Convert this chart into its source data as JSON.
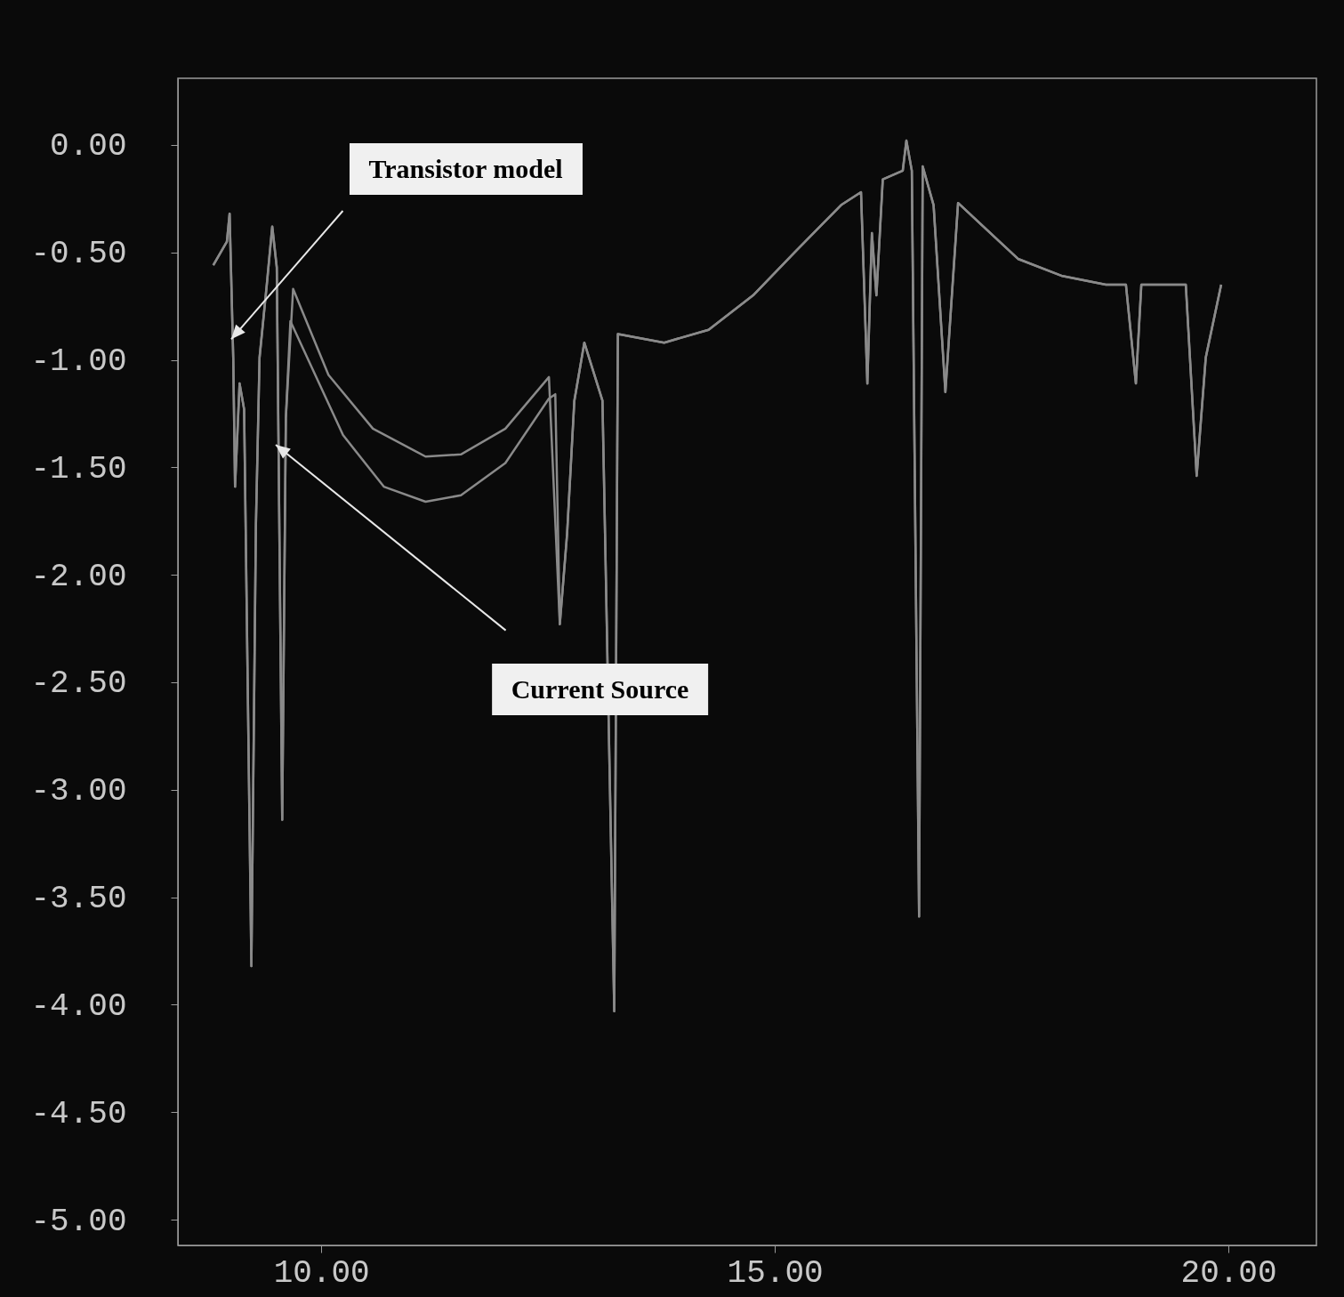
{
  "chart_data": {
    "type": "line",
    "xlim": [
      8.42,
      20.97
    ],
    "ylim": [
      -5.12,
      0.31
    ],
    "xticks": [
      {
        "value": 10,
        "label": "10.00"
      },
      {
        "value": 15,
        "label": "15.00"
      },
      {
        "value": 20,
        "label": "20.00"
      }
    ],
    "yticks": [
      {
        "value": 0,
        "label": "0.00"
      },
      {
        "value": -0.5,
        "label": "-0.50"
      },
      {
        "value": -1,
        "label": "-1.00"
      },
      {
        "value": -1.5,
        "label": "-1.50"
      },
      {
        "value": -2,
        "label": "-2.00"
      },
      {
        "value": -2.5,
        "label": "-2.50"
      },
      {
        "value": -3,
        "label": "-3.00"
      },
      {
        "value": -3.5,
        "label": "-3.50"
      },
      {
        "value": -4,
        "label": "-4.00"
      },
      {
        "value": -4.5,
        "label": "-4.50"
      },
      {
        "value": -5,
        "label": "-5.00"
      }
    ],
    "grid": false,
    "legend": false,
    "annotations": [
      "Transistor model",
      "Current Source"
    ],
    "series": [
      {
        "color": "#8a8a8a",
        "x": [
          8.81,
          8.96,
          8.99,
          9.03,
          9.05,
          9.1,
          9.15,
          9.23,
          9.28,
          9.32,
          9.4,
          9.46,
          9.51,
          9.57,
          9.61,
          9.69,
          10.08,
          10.57,
          11.15,
          11.54,
          12.03,
          12.51,
          12.63,
          12.71,
          12.79,
          12.9,
          13.1,
          13.23,
          13.27,
          13.78,
          14.27,
          14.76,
          15.24,
          15.73,
          15.95,
          16.02,
          16.07,
          16.12,
          16.19,
          16.41,
          16.45,
          16.51,
          16.59,
          16.63,
          16.75,
          16.88,
          17.02,
          17.68,
          18.17,
          18.65,
          18.87,
          18.98,
          19.04,
          19.53,
          19.65,
          19.75,
          19.92
        ],
        "values": [
          -0.56,
          -0.45,
          -0.32,
          -0.99,
          -1.59,
          -1.11,
          -1.23,
          -3.82,
          -1.77,
          -0.99,
          -0.65,
          -0.38,
          -0.57,
          -3.14,
          -1.27,
          -0.67,
          -1.07,
          -1.32,
          -1.45,
          -1.44,
          -1.32,
          -1.08,
          -2.23,
          -1.81,
          -1.19,
          -0.92,
          -1.19,
          -4.03,
          -0.88,
          -0.92,
          -0.86,
          -0.7,
          -0.49,
          -0.28,
          -0.22,
          -1.11,
          -0.41,
          -0.7,
          -0.16,
          -0.12,
          0.02,
          -0.12,
          -3.59,
          -0.1,
          -0.28,
          -1.15,
          -0.27,
          -0.53,
          -0.61,
          -0.65,
          -0.65,
          -1.11,
          -0.65,
          -0.65,
          -1.54,
          -0.99,
          -0.65
        ]
      },
      {
        "color": "#8a8a8a",
        "x": [
          8.81,
          8.96,
          8.99,
          9.03,
          9.05,
          9.1,
          9.15,
          9.23,
          9.28,
          9.32,
          9.4,
          9.46,
          9.51,
          9.57,
          9.61,
          9.66,
          10.24,
          10.69,
          11.15,
          11.54,
          12.03,
          12.51,
          12.58,
          12.63,
          12.71,
          12.79,
          12.9,
          13.1,
          13.23,
          13.27,
          13.78,
          14.27,
          14.76,
          15.24,
          15.73,
          15.95,
          16.02,
          16.07,
          16.12,
          16.19,
          16.41,
          16.45,
          16.51,
          16.59,
          16.63,
          16.75,
          16.88,
          17.02,
          17.68,
          18.17,
          18.65,
          18.87,
          18.98,
          19.04,
          19.53,
          19.65,
          19.75,
          19.92
        ],
        "values": [
          -0.56,
          -0.45,
          -0.32,
          -0.99,
          -1.59,
          -1.11,
          -1.23,
          -3.82,
          -1.77,
          -0.99,
          -0.65,
          -0.38,
          -0.57,
          -3.14,
          -1.27,
          -0.82,
          -1.35,
          -1.59,
          -1.66,
          -1.63,
          -1.48,
          -1.18,
          -1.16,
          -2.23,
          -1.81,
          -1.19,
          -0.92,
          -1.19,
          -4.03,
          -0.88,
          -0.92,
          -0.86,
          -0.7,
          -0.49,
          -0.28,
          -0.22,
          -1.11,
          -0.41,
          -0.7,
          -0.16,
          -0.12,
          0.02,
          -0.12,
          -3.59,
          -0.1,
          -0.28,
          -1.15,
          -0.27,
          -0.53,
          -0.61,
          -0.65,
          -0.65,
          -1.11,
          -0.65,
          -0.65,
          -1.54,
          -0.99,
          -0.65
        ]
      }
    ]
  }
}
